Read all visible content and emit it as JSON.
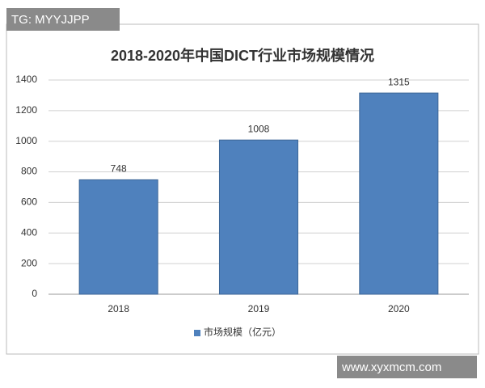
{
  "watermarks": [
    "TG: MYYJJPP",
    "www.xyxmcm.com"
  ],
  "chart_data": {
    "type": "bar",
    "title": "2018-2020年中国DICT行业市场规模情况",
    "categories": [
      "2018",
      "2019",
      "2020"
    ],
    "series": [
      {
        "name": "市场规模（亿元）",
        "color": "#4f81bd",
        "values": [
          748,
          1008,
          1315
        ]
      }
    ],
    "ylim": [
      0,
      1400
    ],
    "yticks": [
      0,
      200,
      400,
      600,
      800,
      1000,
      1200,
      1400
    ],
    "grid": true,
    "legend": "bottom",
    "data_labels": true
  }
}
